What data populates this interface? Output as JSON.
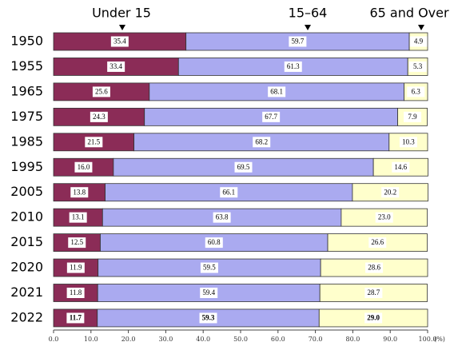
{
  "chart_data": {
    "type": "stacked-bar-horizontal",
    "categories": [
      "1950",
      "1955",
      "1965",
      "1975",
      "1985",
      "1995",
      "2005",
      "2010",
      "2015",
      "2020",
      "2021",
      "2022"
    ],
    "series": [
      {
        "name": "Under 15",
        "color": "#8b2c57",
        "values": [
          35.4,
          33.4,
          25.6,
          24.3,
          21.5,
          16.0,
          13.8,
          13.1,
          12.5,
          11.9,
          11.8,
          11.7
        ],
        "value_labels": [
          "35.4",
          "33.4",
          "25.6",
          "24.3",
          "21.5",
          "16.0",
          "13.8",
          "13.1",
          "12.5",
          "11.9",
          "11.8",
          "11.7"
        ]
      },
      {
        "name": "15–64",
        "color": "#aaaaf0",
        "values": [
          59.7,
          61.3,
          68.1,
          67.7,
          68.2,
          69.5,
          66.1,
          63.8,
          60.8,
          59.5,
          59.4,
          59.3
        ]
      },
      {
        "name": "65 and Over",
        "color": "#ffffcc",
        "values": [
          4.9,
          5.3,
          6.3,
          7.9,
          10.3,
          14.6,
          20.2,
          23.0,
          26.6,
          28.6,
          28.7,
          29.0
        ],
        "value_labels": [
          "4.9",
          "5.3",
          "6.3",
          "7.9",
          "10.3",
          "14.6",
          "20.2",
          "23.0",
          "26.6",
          "28.6",
          "28.7",
          "29.0"
        ]
      }
    ],
    "xlim": [
      0,
      100
    ],
    "xticks": [
      {
        "value": 0,
        "label": "0.0"
      },
      {
        "value": 10,
        "label": "10.0"
      },
      {
        "value": 20,
        "label": "20.0"
      },
      {
        "value": 30,
        "label": "30.0"
      },
      {
        "value": 40,
        "label": "40.0"
      },
      {
        "value": 50,
        "label": "50.0"
      },
      {
        "value": 60,
        "label": "60.0"
      },
      {
        "value": 70,
        "label": "70.0"
      },
      {
        "value": 80,
        "label": "80.0"
      },
      {
        "value": 90,
        "label": "90.0"
      },
      {
        "value": 100,
        "label": "100.0"
      }
    ],
    "xlabel": "(%)",
    "legend": "top"
  }
}
